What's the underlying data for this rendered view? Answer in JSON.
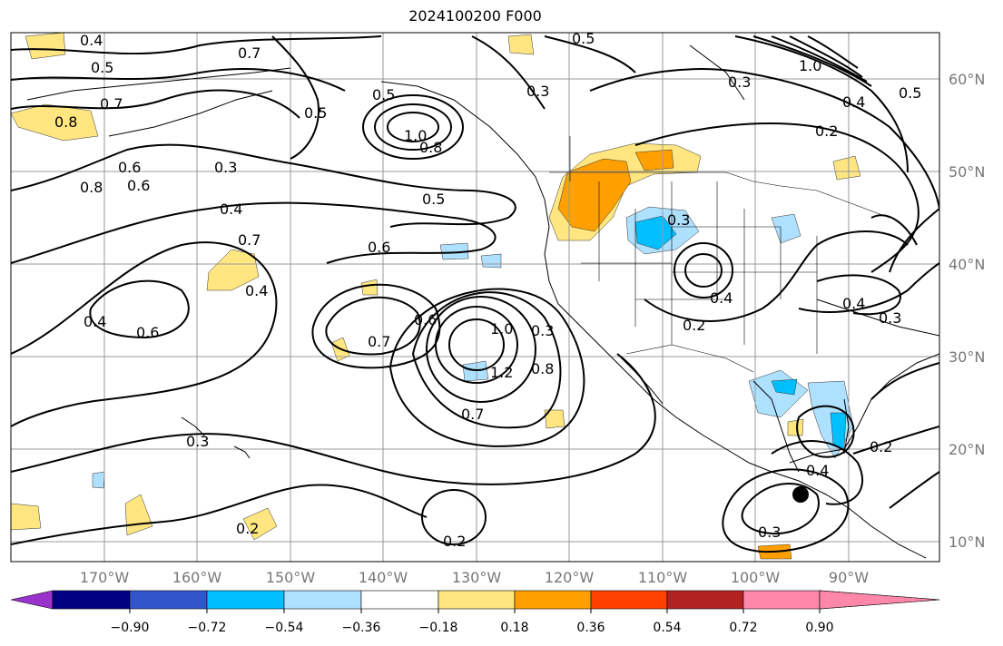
{
  "title": "2024100200 F000",
  "lat_labels": [
    "60°N",
    "50°N",
    "40°N",
    "30°N",
    "20°N",
    "10°N"
  ],
  "lon_labels": [
    "170°W",
    "160°W",
    "150°W",
    "140°W",
    "130°W",
    "120°W",
    "110°W",
    "100°W",
    "90°W"
  ],
  "colorbar": {
    "tick_labels": [
      "−0.90",
      "−0.72",
      "−0.54",
      "−0.36",
      "−0.18",
      "0.18",
      "0.36",
      "0.54",
      "0.72",
      "0.90"
    ],
    "colors": [
      "#9933cc",
      "#000080",
      "#3355cc",
      "#00bfff",
      "#aee0ff",
      "#ffffff",
      "#ffe680",
      "#ffa000",
      "#ff4000",
      "#b22222",
      "#ff88aa"
    ]
  },
  "contour_labels": [
    "0.4",
    "0.5",
    "0.7",
    "0.5",
    "0.3",
    "0.8",
    "0.7",
    "0.6",
    "0.6",
    "0.3",
    "0.5",
    "1.0",
    "0.8",
    "0.8",
    "0.5",
    "0.4",
    "0.6",
    "0.7",
    "0.5",
    "0.4",
    "0.6",
    "0.4",
    "0.7",
    "0.6",
    "1.0",
    "1.2",
    "0.8",
    "0.3",
    "0.7",
    "0.3",
    "0.2",
    "0.3",
    "0.3",
    "0.2",
    "0.4",
    "0.2",
    "0.4",
    "0.3",
    "0.2",
    "0.4",
    "0.3",
    "1.0",
    "0.5",
    "0.2",
    "0.4"
  ],
  "marker": "storm-center"
}
